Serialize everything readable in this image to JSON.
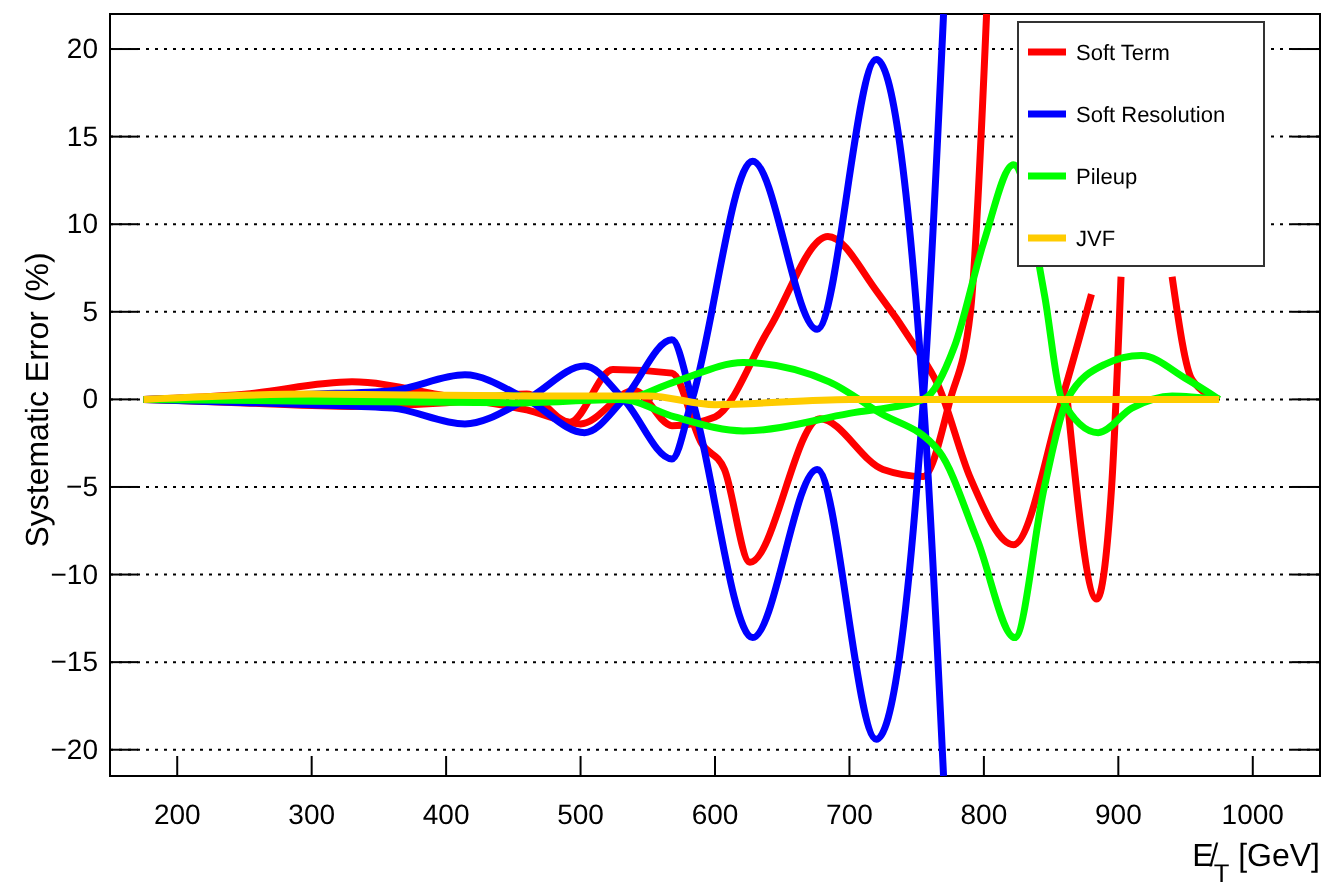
{
  "chart_data": {
    "type": "line",
    "xlabel": "E̸$_{T}$ [GeV]",
    "ylabel": "Systematic Error (%)",
    "xlim": [
      150,
      1050
    ],
    "ylim": [
      -21.5,
      22
    ],
    "xticks": [
      200,
      300,
      400,
      500,
      600,
      700,
      800,
      900,
      1000
    ],
    "yticks": [
      -20,
      -15,
      -10,
      -5,
      0,
      5,
      10,
      15,
      20
    ],
    "grid": "y",
    "legend": "top right",
    "line_style": "solid",
    "marker": "none",
    "series": [
      {
        "name": "Soft Term",
        "color": "#ff0000",
        "x": [
          175,
          250,
          330,
          400,
          460,
          500,
          540,
          568,
          600,
          640,
          684,
          721,
          749,
          766,
          790,
          822,
          858,
          880,
          905,
          940,
          955,
          975
        ],
        "values": [
          0,
          0.3,
          1.0,
          0.2,
          -0.6,
          -1.4,
          0.5,
          -1.5,
          -1,
          4,
          9.3,
          6.1,
          3,
          0.8,
          -4.5,
          -8.3,
          0,
          6,
          null,
          7,
          1.1,
          0
        ]
      },
      {
        "color": "#ff0000",
        "x": [
          175,
          250,
          330,
          400,
          460,
          492,
          524,
          568,
          590,
          607,
          626,
          678,
          725,
          755,
          775,
          790,
          802,
          848,
          862,
          884,
          895,
          902
        ],
        "values": [
          0,
          -0.2,
          -0.4,
          -0.2,
          0.3,
          -1.3,
          1.7,
          1.5,
          -2.5,
          -4,
          -9.3,
          -1.1,
          -4,
          -4.4,
          0,
          5,
          22,
          null,
          0,
          -11.4,
          -5,
          7
        ]
      },
      {
        "name": "Soft Resolution",
        "color": "#0000ff",
        "x": [
          175,
          300,
          360,
          414,
          460,
          503,
          532,
          568,
          583,
          628,
          676,
          720,
          755,
          770
        ],
        "values": [
          0,
          0.3,
          0.5,
          1.4,
          0,
          -1.9,
          0,
          3.4,
          0,
          -13.6,
          -4,
          -19.4,
          0,
          22
        ]
      },
      {
        "color": "#0000ff",
        "x": [
          175,
          300,
          360,
          414,
          460,
          503,
          532,
          568,
          583,
          628,
          676,
          720,
          755,
          770
        ],
        "values": [
          0,
          -0.3,
          -0.5,
          -1.4,
          0,
          1.9,
          0,
          -3.4,
          0,
          13.6,
          4,
          19.4,
          0,
          -21.5
        ]
      },
      {
        "name": "Pileup",
        "color": "#00ff00",
        "x": [
          175,
          300,
          450,
          530,
          570,
          621,
          685,
          721,
          767,
          795,
          823,
          845,
          862,
          890,
          917,
          950,
          975
        ],
        "values": [
          0,
          0.1,
          0.2,
          0,
          1,
          2.1,
          1,
          -0.7,
          -3,
          -8,
          -13.6,
          -5,
          0,
          2,
          2.5,
          1.2,
          0
        ]
      },
      {
        "color": "#00ff00",
        "x": [
          175,
          300,
          450,
          530,
          570,
          621,
          700,
          755,
          778,
          800,
          822,
          845,
          858,
          885,
          910,
          940,
          975
        ],
        "values": [
          0,
          -0.1,
          -0.2,
          0,
          -1,
          -1.8,
          -0.8,
          0,
          3,
          9,
          13.4,
          6,
          0,
          -1.9,
          -0.5,
          0.2,
          0
        ]
      },
      {
        "name": "JVF",
        "color": "#ffcc00",
        "x": [
          175,
          300,
          450,
          550,
          600,
          700,
          975
        ],
        "values": [
          0,
          0.3,
          0.2,
          0.2,
          -0.3,
          0,
          0
        ]
      }
    ]
  }
}
